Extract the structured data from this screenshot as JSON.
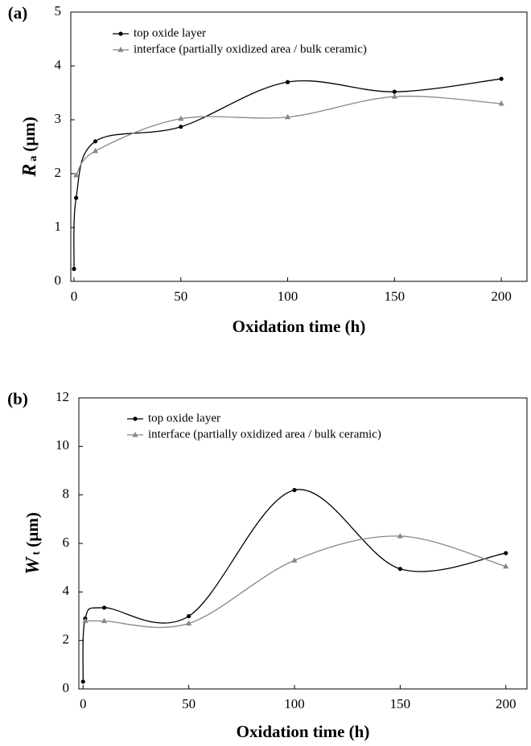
{
  "chart_data": [
    {
      "type": "line",
      "panel_label": "(a)",
      "ylabel": "R",
      "ylabel_sub": "a",
      "ylabel_unit": "(µm)",
      "xlabel": "Oxidation time (h)",
      "xlim": [
        -1.5,
        212
      ],
      "ylim": [
        0,
        5
      ],
      "xticks": [
        0,
        50,
        100,
        150,
        200
      ],
      "yticks": [
        0,
        1,
        2,
        3,
        4,
        5
      ],
      "series": [
        {
          "name": "top oxide layer",
          "color": "#000000",
          "marker": "circle",
          "x": [
            0,
            1,
            10,
            50,
            100,
            150,
            200
          ],
          "values": [
            0.23,
            1.55,
            2.6,
            2.87,
            3.7,
            3.52,
            3.76
          ]
        },
        {
          "name": "interface (partially oxidized area / bulk ceramic)",
          "color": "#888888",
          "marker": "triangle",
          "x": [
            1,
            10,
            50,
            100,
            150,
            200
          ],
          "values": [
            1.97,
            2.42,
            3.02,
            3.05,
            3.43,
            3.3
          ]
        }
      ]
    },
    {
      "type": "line",
      "panel_label": "(b)",
      "ylabel": "W",
      "ylabel_sub": "t",
      "ylabel_unit": "(µm)",
      "xlabel": "Oxidation time (h)",
      "xlim": [
        -2,
        210
      ],
      "ylim": [
        0,
        12
      ],
      "xticks": [
        0,
        50,
        100,
        150,
        200
      ],
      "yticks": [
        0,
        2,
        4,
        6,
        8,
        10,
        12
      ],
      "series": [
        {
          "name": "top oxide layer",
          "color": "#000000",
          "marker": "circle",
          "x": [
            0,
            1,
            10,
            50,
            100,
            150,
            200
          ],
          "values": [
            0.3,
            2.9,
            3.35,
            3.0,
            8.2,
            4.95,
            5.6
          ]
        },
        {
          "name": "interface (partially oxidized area / bulk ceramic)",
          "color": "#888888",
          "marker": "triangle",
          "x": [
            1,
            10,
            50,
            100,
            150,
            200
          ],
          "values": [
            2.8,
            2.8,
            2.7,
            5.3,
            6.3,
            5.05
          ]
        }
      ]
    }
  ]
}
